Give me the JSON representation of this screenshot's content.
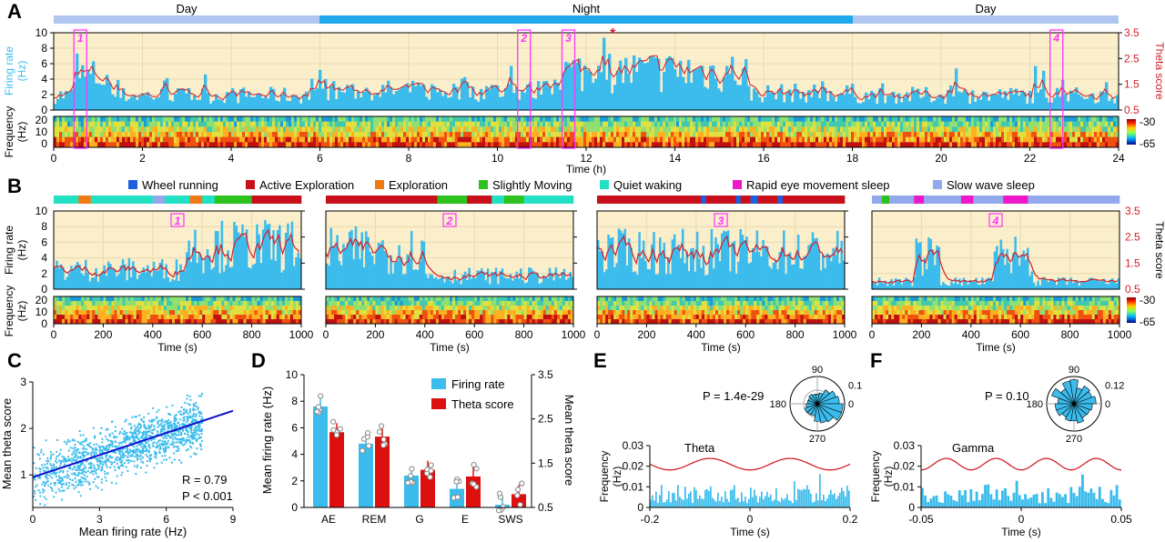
{
  "panel_letters": {
    "a": "A",
    "b": "B",
    "c": "C",
    "d": "D",
    "e": "E",
    "f": "F"
  },
  "day_night": {
    "day1": "Day",
    "night": "Night",
    "day2": "Day"
  },
  "colors": {
    "day": "#aec6f0",
    "night": "#1fa9ea",
    "bg": "#fbeecb",
    "fr": "#3cbcec",
    "theta": "#d0202a",
    "box": "#ff33ff",
    "regline": "#1010cc",
    "bar_fr": "#3cbcec",
    "bar_th": "#dd1010"
  },
  "labels": {
    "firing_rate": "Firing rate",
    "hz": "(Hz)",
    "frequency": "Frequency",
    "theta_score": "Theta score",
    "time_h": "Time (h)",
    "time_s": "Time (s)",
    "star": "*"
  },
  "panel_a": {
    "fr_ticks": [
      "0",
      "2",
      "4",
      "6",
      "8",
      "10"
    ],
    "theta_ticks": [
      "0.5",
      "1.5",
      "2.5",
      "3.5"
    ],
    "spec_ticks": [
      "0",
      "10",
      "20"
    ],
    "x_ticks": [
      "0",
      "2",
      "4",
      "6",
      "8",
      "10",
      "12",
      "14",
      "16",
      "18",
      "20",
      "22",
      "24"
    ],
    "colorbar": [
      "-30",
      "-65"
    ],
    "boxes": [
      {
        "label": "1",
        "x": 0.6
      },
      {
        "label": "2",
        "x": 10.6
      },
      {
        "label": "3",
        "x": 11.6
      },
      {
        "label": "4",
        "x": 22.6
      }
    ],
    "star_x": 12.6
  },
  "panel_b": {
    "legend": [
      {
        "name": "Wheel running",
        "color": "#1f5ee0"
      },
      {
        "name": "Active Exploration",
        "color": "#c8101a"
      },
      {
        "name": "Exploration",
        "color": "#f07a16"
      },
      {
        "name": "Slightly Moving",
        "color": "#2ec21f"
      },
      {
        "name": "Quiet waking",
        "color": "#22e0c4"
      },
      {
        "name": "Rapid eye movement sleep",
        "color": "#ee18c8"
      },
      {
        "name": "Slow wave sleep",
        "color": "#94a8ec"
      }
    ],
    "fr_ticks": [
      "0",
      "2",
      "4",
      "6",
      "8",
      "10"
    ],
    "theta_ticks": [
      "0.5",
      "1.5",
      "2.5",
      "3.5"
    ],
    "x_ticks": [
      "0",
      "200",
      "400",
      "600",
      "800",
      "1000"
    ],
    "panel_labels": [
      "1",
      "2",
      "3",
      "4"
    ],
    "colorbar": [
      "-30",
      "-65"
    ]
  },
  "panel_c": {
    "xlabel": "Mean firing rate (Hz)",
    "ylabel": "Mean theta score",
    "x_ticks": [
      "0",
      "3",
      "6",
      "9"
    ],
    "y_ticks": [
      "1",
      "2",
      "3"
    ],
    "r_text": "R = 0.79",
    "p_text": "P < 0.001"
  },
  "panel_d": {
    "ylabel_left": "Mean firing rate (Hz)",
    "ylabel_right": "Mean theta score",
    "left_ticks": [
      "0",
      "2",
      "4",
      "6",
      "8",
      "10"
    ],
    "right_ticks": [
      "0.5",
      "1.5",
      "2.5",
      "3.5"
    ],
    "legend": [
      "Firing rate",
      "Theta score"
    ]
  },
  "panel_e": {
    "p_text": "P = 1.4e-29",
    "name": "Theta",
    "x_ticks": [
      "-0.2",
      "0",
      "0.2"
    ],
    "y_ticks": [
      "0",
      "0.01",
      "0.02",
      "0.03"
    ],
    "polar": [
      "90",
      "180",
      "270",
      "0",
      "0.1"
    ]
  },
  "panel_f": {
    "p_text": "P = 0.10",
    "name": "Gamma",
    "x_ticks": [
      "-0.05",
      "0",
      "0.05"
    ],
    "y_ticks": [
      "0",
      "0.01",
      "0.02",
      "0.03"
    ],
    "polar": [
      "90",
      "180",
      "270",
      "0",
      "0.12"
    ]
  },
  "chart_data": [
    {
      "type": "bar",
      "categories": [
        "AE",
        "REM",
        "G",
        "E",
        "SWS"
      ],
      "series": [
        {
          "name": "Firing rate",
          "values": [
            7.6,
            4.8,
            2.4,
            1.4,
            0.2
          ]
        },
        {
          "name": "Theta score",
          "values": [
            2.2,
            2.1,
            1.35,
            1.2,
            0.8
          ]
        }
      ],
      "ylabel": "Mean firing rate (Hz)",
      "ylim": [
        0,
        10
      ],
      "y2label": "Mean theta score",
      "y2lim": [
        0.5,
        3.5
      ]
    },
    {
      "type": "scatter",
      "xlabel": "Mean firing rate (Hz)",
      "ylabel": "Mean theta score",
      "xlim": [
        0,
        9
      ],
      "ylim": [
        0.3,
        3
      ],
      "fit_line": {
        "x": [
          0,
          9
        ],
        "y": [
          0.95,
          2.38
        ]
      }
    }
  ]
}
